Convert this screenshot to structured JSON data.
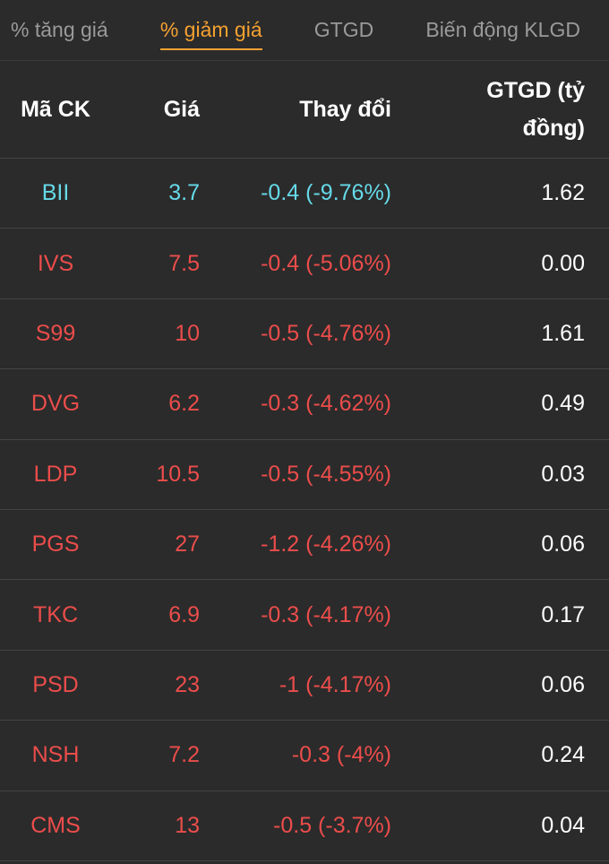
{
  "tabs": [
    "% tăng giá",
    "% giảm giá",
    "GTGD",
    "Biến động KLGD"
  ],
  "active_tab": 1,
  "active_color": "#f5a131",
  "table": {
    "headers": [
      "Mã CK",
      "Giá",
      "Thay đổi",
      "GTGD (tỷ đồng)"
    ],
    "rows": [
      {
        "cells": [
          "BII",
          "3.7",
          "-0.4 (-9.76%)",
          "1.62"
        ],
        "color": "#66d9e8"
      },
      {
        "cells": [
          "IVS",
          "7.5",
          "-0.4 (-5.06%)",
          "0.00"
        ],
        "color": "#eb4d4b"
      },
      {
        "cells": [
          "S99",
          "10",
          "-0.5 (-4.76%)",
          "1.61"
        ],
        "color": "#eb4d4b"
      },
      {
        "cells": [
          "DVG",
          "6.2",
          "-0.3 (-4.62%)",
          "0.49"
        ],
        "color": "#eb4d4b"
      },
      {
        "cells": [
          "LDP",
          "10.5",
          "-0.5 (-4.55%)",
          "0.03"
        ],
        "color": "#eb4d4b"
      },
      {
        "cells": [
          "PGS",
          "27",
          "-1.2 (-4.26%)",
          "0.06"
        ],
        "color": "#eb4d4b"
      },
      {
        "cells": [
          "TKC",
          "6.9",
          "-0.3 (-4.17%)",
          "0.17"
        ],
        "color": "#eb4d4b"
      },
      {
        "cells": [
          "PSD",
          "23",
          "-1 (-4.17%)",
          "0.06"
        ],
        "color": "#eb4d4b"
      },
      {
        "cells": [
          "NSH",
          "7.2",
          "-0.3 (-4%)",
          "0.24"
        ],
        "color": "#eb4d4b"
      },
      {
        "cells": [
          "CMS",
          "13",
          "-0.5 (-3.7%)",
          "0.04"
        ],
        "color": "#eb4d4b"
      }
    ]
  }
}
